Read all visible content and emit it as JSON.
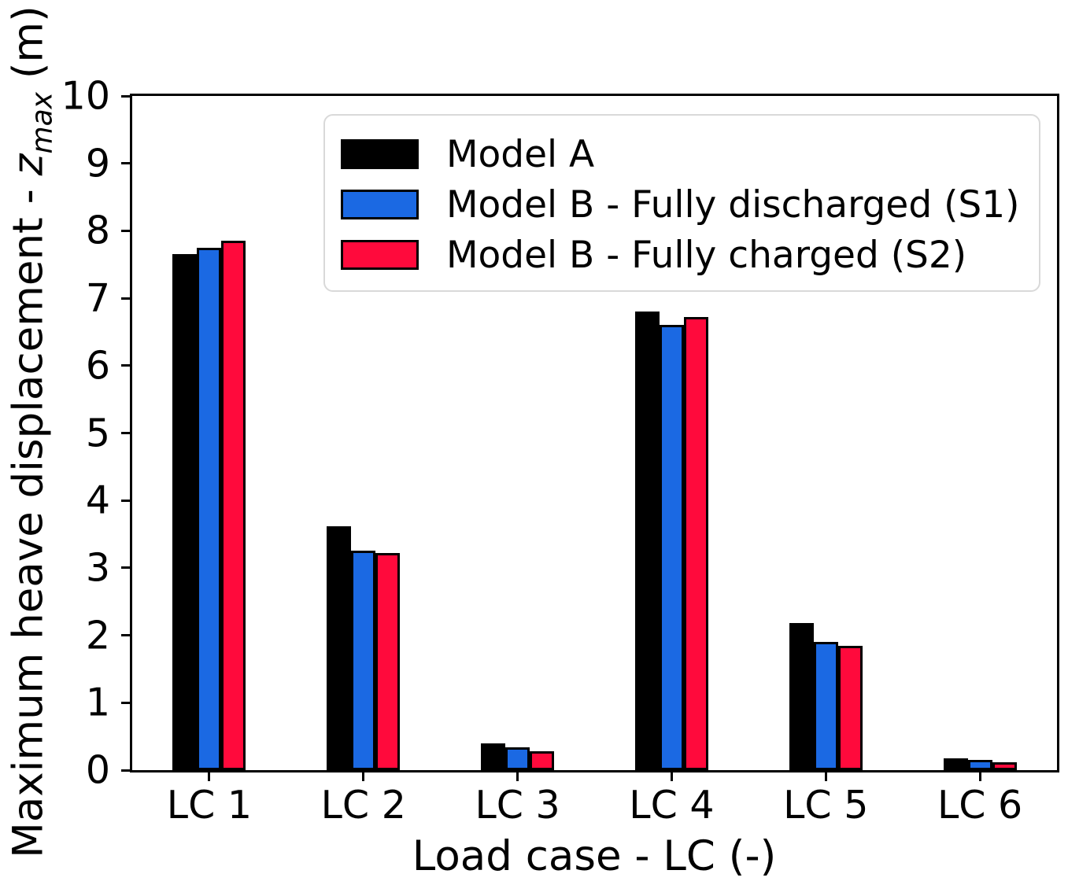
{
  "chart_data": {
    "type": "bar",
    "title": "",
    "xlabel": "Load case - LC (-)",
    "ylabel": "Maximum heave displacement - z_max (m)",
    "ylabel_parts": {
      "prefix": "Maximum heave displacement - ",
      "variable": "z",
      "subscript": "max",
      "suffix": " (m)"
    },
    "categories": [
      "LC 1",
      "LC 2",
      "LC 3",
      "LC 4",
      "LC 5",
      "LC 6"
    ],
    "series": [
      {
        "name": "Model A",
        "color": "#000000",
        "values": [
          7.65,
          3.62,
          0.4,
          6.8,
          2.18,
          0.18
        ]
      },
      {
        "name": "Model B - Fully discharged (S1)",
        "color": "#1B69E3",
        "values": [
          7.75,
          3.25,
          0.34,
          6.6,
          1.9,
          0.15
        ]
      },
      {
        "name": "Model B - Fully charged (S2)",
        "color": "#FF0A3C",
        "values": [
          7.85,
          3.22,
          0.28,
          6.72,
          1.84,
          0.12
        ]
      }
    ],
    "ylim": [
      0,
      10
    ],
    "yticks": [
      "0",
      "1",
      "2",
      "3",
      "4",
      "5",
      "6",
      "7",
      "8",
      "9",
      "10"
    ],
    "grid": false,
    "legend": {
      "position": "upper center inside",
      "border_color": "#d9d9d9"
    },
    "style": {
      "bar_edge_color": "#000000",
      "axis_color": "#000000",
      "background": "#ffffff"
    }
  }
}
